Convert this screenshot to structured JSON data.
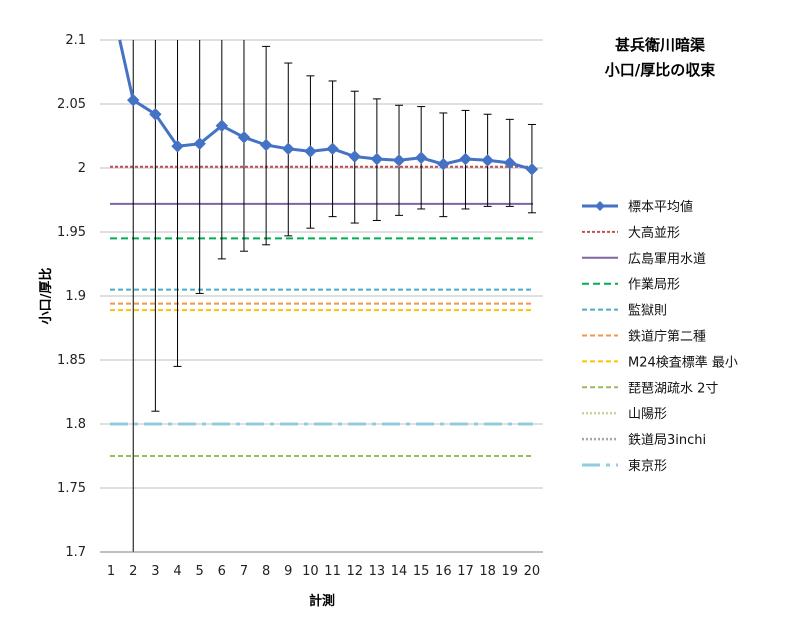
{
  "chart_data": {
    "type": "line",
    "title": [
      "甚兵衛川暗渠",
      "小口/厚比の収束"
    ],
    "xlabel": "計測",
    "ylabel": "小口/厚比",
    "ylim": [
      1.7,
      2.1
    ],
    "y_ticks": [
      1.7,
      1.75,
      1.8,
      1.85,
      1.9,
      1.95,
      2,
      2.05,
      2.1
    ],
    "y_tick_labels": [
      "1.7",
      "1.75",
      "1.8",
      "1.85",
      "1.9",
      "1.95",
      "2",
      "2.05",
      "2.1"
    ],
    "x": [
      1,
      2,
      3,
      4,
      5,
      6,
      7,
      8,
      9,
      10,
      11,
      12,
      13,
      14,
      15,
      16,
      17,
      18,
      19,
      20
    ],
    "grid": "horizontal",
    "legend_position": "right",
    "series": [
      {
        "name": "標本平均値",
        "style": "line-marker",
        "color": "#4472C4",
        "values": [
          2.13,
          2.053,
          2.042,
          2.017,
          2.019,
          2.033,
          2.024,
          2.018,
          2.015,
          2.013,
          2.015,
          2.009,
          2.007,
          2.006,
          2.008,
          2.003,
          2.007,
          2.006,
          2.004,
          1.999
        ],
        "error_low": [
          null,
          1.7,
          1.81,
          1.845,
          1.902,
          1.929,
          1.935,
          1.94,
          1.947,
          1.953,
          1.962,
          1.957,
          1.959,
          1.963,
          1.968,
          1.962,
          1.968,
          1.97,
          1.97,
          1.965
        ],
        "error_high": [
          null,
          2.1,
          2.1,
          2.1,
          2.1,
          2.1,
          2.1,
          2.095,
          2.082,
          2.072,
          2.068,
          2.06,
          2.054,
          2.049,
          2.048,
          2.043,
          2.045,
          2.042,
          2.038,
          2.034
        ]
      },
      {
        "name": "大高並形",
        "style": "dotted",
        "color": "#C0504D",
        "value": 2.001
      },
      {
        "name": "広島軍用水道",
        "style": "solid",
        "color": "#8064A2",
        "value": 1.972
      },
      {
        "name": "作業局形",
        "style": "dashed",
        "color": "#00B050",
        "value": 1.945
      },
      {
        "name": "監獄則",
        "style": "dashed-fine",
        "color": "#4BACC6",
        "value": 1.905
      },
      {
        "name": "鉄道庁第二種",
        "style": "dashed-fine",
        "color": "#F79646",
        "value": 1.894
      },
      {
        "name": "M24検査標準 最小",
        "style": "dashed-fine",
        "color": "#FFC000",
        "value": 1.889
      },
      {
        "name": "琵琶湖疏水 2寸",
        "style": "dashed-fine",
        "color": "#9BBB59",
        "value": 1.775
      },
      {
        "name": "山陽形",
        "style": "dotted-fine",
        "color": "#C4D79B",
        "value": null
      },
      {
        "name": "鉄道局3inchi",
        "style": "dotted-fine",
        "color": "#A6A6A6",
        "value": null
      },
      {
        "name": "東京形",
        "style": "dash-dot",
        "color": "#93CDDD",
        "value": 1.8
      }
    ]
  }
}
